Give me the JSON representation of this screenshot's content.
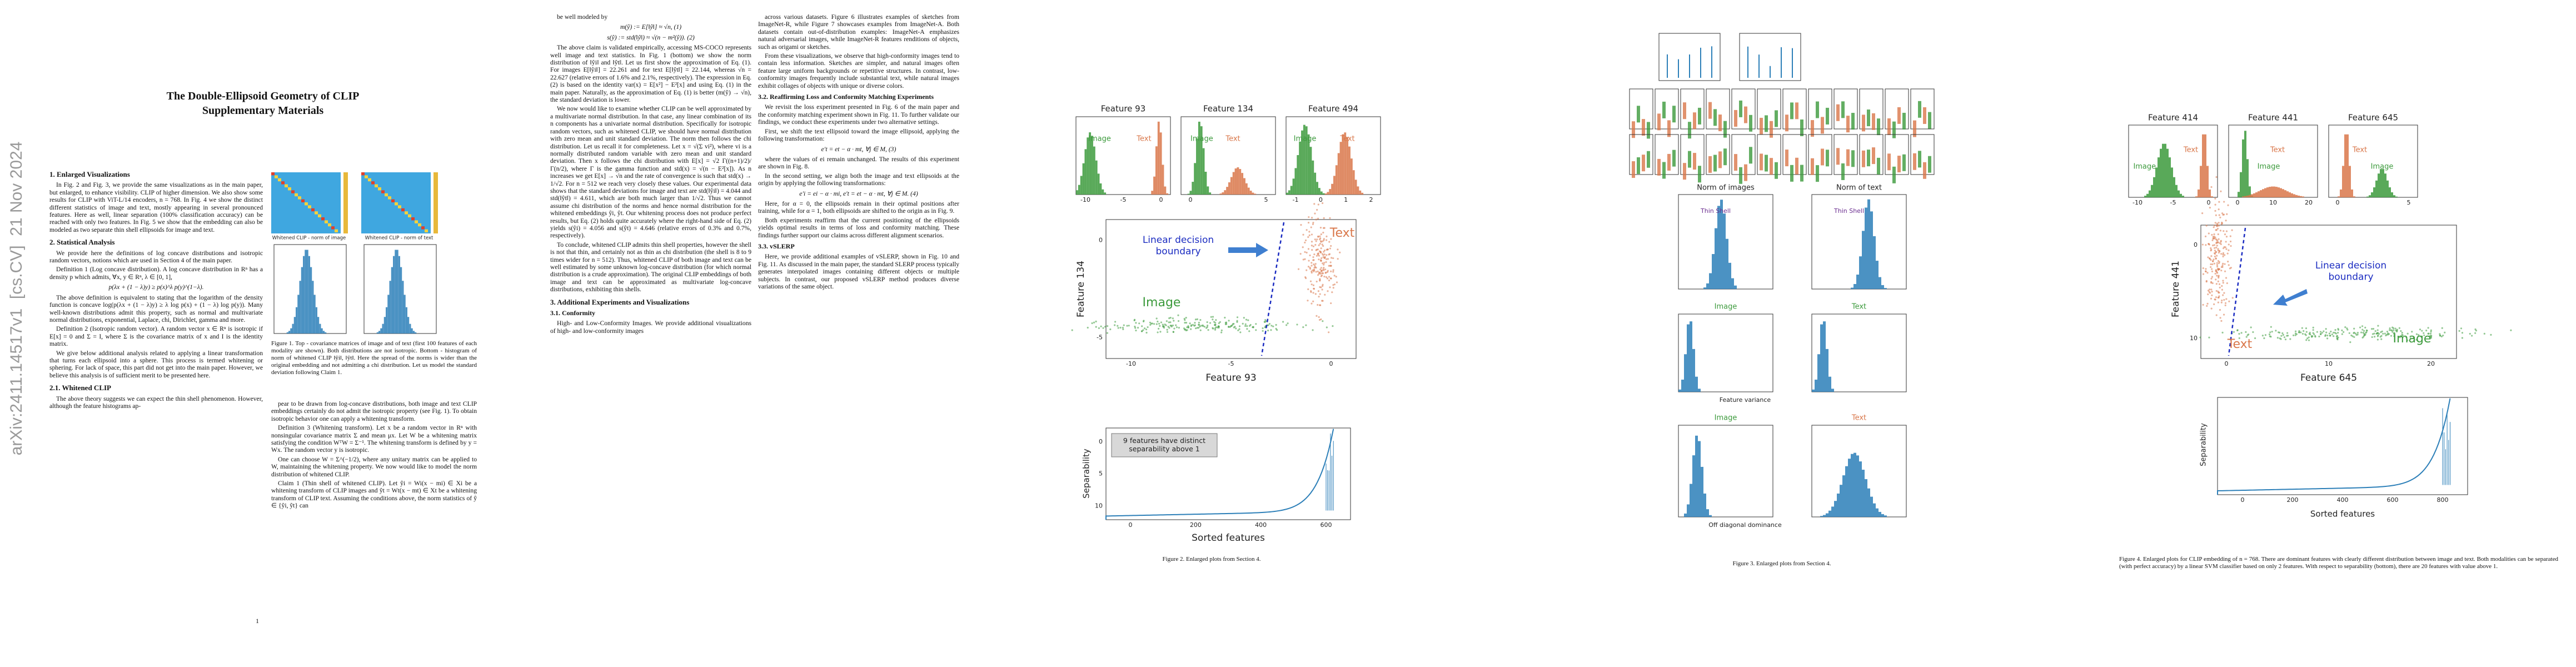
{
  "arxiv_stamp": "arXiv:2411.14517v1  [cs.CV]  21 Nov 2024",
  "page1": {
    "title": "The Double-Ellipsoid Geometry of CLIP\nSupplementary Materials",
    "columns": [
      {
        "blocks": [
          {
            "kind": "heading",
            "text": "1. Enlarged Visualizations"
          },
          {
            "kind": "para",
            "text": "In Fig. 2 and Fig. 3, we provide the same visualizations as in the main paper, but enlarged, to enhance visibility. CLIP of higher dimension. We also show some results for CLIP with ViT-L/14 encoders, n = 768. In Fig. 4 we show the distinct different statistics of image and text, mostly appearing in several pronounced features. Here as well, linear separation (100% classification accuracy) can be reached with only two features. In Fig. 5 we show that the embedding can also be modeled as two separate thin shell ellipsoids for image and text."
          },
          {
            "kind": "heading",
            "text": "2. Statistical Analysis"
          },
          {
            "kind": "para",
            "text": "We provide here the definitions of log concave distributions and isotropic random vectors, notions which are used in Section 4 of the main paper."
          },
          {
            "kind": "para",
            "text": "Definition 1 (Log concave distribution). A log concave distribution in Rⁿ has a density p which admits, ∀x, y ∈ Rⁿ, λ ∈ [0, 1],"
          },
          {
            "kind": "eq",
            "text": "p(λx + (1 − λ)y) ≥ p(x)^λ p(y)^(1−λ)."
          },
          {
            "kind": "para",
            "text": "The above definition is equivalent to stating that the logarithm of the density function is concave log(p(λx + (1 − λ)y) ≥ λ log p(x) + (1 − λ) log p(y)). Many well-known distributions admit this property, such as normal and multivariate normal distributions, exponential, Laplace, chi, Dirichlet, gamma and more."
          },
          {
            "kind": "para",
            "text": "Definition 2 (Isotropic random vector). A random vector x ∈ Rⁿ is isotropic if E[x] = 0 and Σ = I, where Σ is the covariance matrix of x and I is the identity matrix."
          },
          {
            "kind": "para",
            "text": "We give below additional analysis related to applying a linear transformation that turns each ellipsoid into a sphere. This process is termed whitening or sphering. For lack of space, this part did not get into the main paper. However, we believe this analysis is of sufficient merit to be presented here."
          },
          {
            "kind": "heading",
            "text": "2.1. Whitened CLIP"
          },
          {
            "kind": "para",
            "text": "The above theory suggests we can expect the thin shell phenomenon. However, although the feature histograms ap-"
          }
        ]
      },
      {
        "blocks": [
          {
            "kind": "para",
            "text": "pear to be drawn from log-concave distributions, both image and text CLIP embeddings certainly do not admit the isotropic property (see Fig. 1). To obtain isotropic behavior one can apply a whitening transform."
          },
          {
            "kind": "para",
            "text": "Definition 3 (Whitening transform). Let x be a random vector in Rⁿ with nonsingular covariance matrix Σ and mean μx. Let W be a whitening matrix satisfying the condition WᵀW = Σ⁻¹. The whitening transform is defined by y = Wx. The random vector y is isotropic."
          },
          {
            "kind": "para",
            "text": "One can choose W = Σ^(−1/2), where any unitary matrix can be applied to W, maintaining the whitening property. We now would like to model the norm distribution of whitened CLIP."
          },
          {
            "kind": "para",
            "text": "Claim 1 (Thin shell of whitened CLIP). Let ŷi = Wi(x − mi) ∈ Xi be a whitening transform of CLIP images and ŷt = Wt(x − mt) ∈ Xt be a whitening transform of CLIP text. Assuming the conditions above, the norm statistics of ŷ ∈ {ŷi, ŷt} can"
          }
        ]
      }
    ],
    "figure1": {
      "labels": [
        "Whitened CLIP - norm of image",
        "Whitened CLIP - norm of text"
      ],
      "caption": "Figure 1. Top - covariance matrices of image and of text (first 100 features of each modality are shown). Both distributions are not isotropic. Bottom - histogram of norm of whitened CLIP ‖ŷi‖, ‖ŷt‖. Here the spread of the norms is wider than the original embedding and not admitting a chi distribution. Let us model the standard deviation following Claim 1."
    },
    "page_number": "1"
  },
  "page2": {
    "columns": [
      {
        "blocks": [
          {
            "kind": "para",
            "text": "be well modeled by"
          },
          {
            "kind": "eq",
            "text": "m(ŷ) := E[‖ŷ‖] ≈ √n,   (1)"
          },
          {
            "kind": "eq",
            "text": "s(ŷ) := std(‖ŷ‖) ≈ √(n − m²(ŷ)).   (2)"
          },
          {
            "kind": "para",
            "text": "The above claim is validated empirically, accessing MS-COCO represents well image and text statistics. In Fig. 1 (bottom) we show the norm distribution of ‖ŷi‖ and ‖ŷt‖. Let us first show the approximation of Eq. (1). For images E[‖ŷi‖] = 22.261 and for text E[‖ŷt‖] = 22.144, whereas √n = 22.627 (relative errors of 1.6% and 2.1%, respectively). The expression in Eq. (2) is based on the identity var(x) = E[x²] − E²[x] and using Eq. (1) in the main paper. Naturally, as the approximation of Eq. (1) is better (m(ŷ) → √n), the standard deviation is lower."
          },
          {
            "kind": "para",
            "text": "We now would like to examine whether CLIP can be well approximated by a multivariate normal distribution. In that case, any linear combination of its n components has a univariate normal distribution. Specifically for isotropic random vectors, such as whitened CLIP, we should have normal distribution with zero mean and unit standard deviation. The norm then follows the chi distribution. Let us recall it for completeness. Let x = √(Σ vi²), where vi is a normally distributed random variable with zero mean and unit standard deviation. Then x follows the chi distribution with E[x] = √2 Γ((n+1)/2)/Γ(n/2), where Γ is the gamma function and std(x) = √(n − E²[x]). As n increases we get E[x] → √n and the rate of convergence is such that std(x) → 1/√2. For n = 512 we reach very closely these values. Our experimental data shows that the standard deviations for image and text are std(‖ŷi‖) = 4.044 and std(‖ŷt‖) = 4.611, which are both much larger than 1/√2. Thus we cannot assume chi distribution of the norms and hence normal distribution for the whitened embeddings ŷi, ŷt. Our whitening process does not produce perfect results, but Eq. (2) holds quite accurately where the right-hand side of Eq. (2) yields s(ŷi) = 4.056 and s(ŷt) = 4.646 (relative errors of 0.3% and 0.7%, respectively)."
          },
          {
            "kind": "para",
            "text": "To conclude, whitened CLIP admits thin shell properties, however the shell is not that thin, and certainly not as thin as chi distribution (the shell is 8 to 9 times wider for n = 512). Thus, whitened CLIP of both image and text can be well estimated by some unknown log-concave distribution (for which normal distribution is a crude approximation). The original CLIP embeddings of both image and text can be approximated as multivariate log-concave distributions, exhibiting thin shells."
          },
          {
            "kind": "heading",
            "text": "3. Additional Experiments and Visualizations"
          },
          {
            "kind": "subheading",
            "text": "3.1. Conformity"
          },
          {
            "kind": "para",
            "text": "High- and Low-Conformity Images. We provide additional visualizations of high- and low-conformity images"
          }
        ]
      },
      {
        "blocks": [
          {
            "kind": "para",
            "text": "across various datasets. Figure 6 illustrates examples of sketches from ImageNet-R, while Figure 7 showcases examples from ImageNet-A. Both datasets contain out-of-distribution examples: ImageNet-A emphasizes natural adversarial images, while ImageNet-R features renditions of objects, such as origami or sketches."
          },
          {
            "kind": "para",
            "text": "From these visualizations, we observe that high-conformity images tend to contain less information. Sketches are simpler, and natural images often feature large uniform backgrounds or repetitive structures. In contrast, low-conformity images frequently include substantial text, while natural images exhibit collages of objects with unique or diverse colors."
          },
          {
            "kind": "subheading",
            "text": "3.2. Reaffirming Loss and Conformity Matching Experiments"
          },
          {
            "kind": "para",
            "text": "We revisit the loss experiment presented in Fig. 6 of the main paper and the conformity matching experiment shown in Fig. 11. To further validate our findings, we conduct these experiments under two alternative settings."
          },
          {
            "kind": "para",
            "text": "First, we shift the text ellipsoid toward the image ellipsoid, applying the following transformation:"
          },
          {
            "kind": "eq",
            "text": "e′t = et − α · mt,   ∀j ∈ M,   (3)"
          },
          {
            "kind": "para",
            "text": "where the values of ei remain unchanged. The results of this experiment are shown in Fig. 8."
          },
          {
            "kind": "para",
            "text": "In the second setting, we align both the image and text ellipsoids at the origin by applying the following transformations:"
          },
          {
            "kind": "eq",
            "text": "e′i = ei − α · mi,   e′t = et − α · mt,   ∀j ∈ M.   (4)"
          },
          {
            "kind": "para",
            "text": "Here, for α = 0, the ellipsoids remain in their optimal positions after training, while for α = 1, both ellipsoids are shifted to the origin as in Fig. 9."
          },
          {
            "kind": "para",
            "text": "Both experiments reaffirm that the current positioning of the ellipsoids yields optimal results in terms of loss and conformity matching. These findings further support our claims across different alignment scenarios."
          },
          {
            "kind": "subheading",
            "text": "3.3. vSLERP"
          },
          {
            "kind": "para",
            "text": "Here, we provide additional examples of vSLERP, shown in Fig. 10 and Fig. 11. As discussed in the main paper, the standard SLERP process typically generates interpolated images containing different objects or multiple subjects. In contrast, our proposed vSLERP method produces diverse variations of the same object."
          }
        ]
      }
    ]
  },
  "figure2": {
    "panels": [
      {
        "title": "Feature 93",
        "image_label": "Image",
        "text_label": "Text",
        "ticks": [
          "-10",
          "-5",
          "0"
        ]
      },
      {
        "title": "Feature 134",
        "image_label": "Image",
        "text_label": "Text",
        "ticks": [
          "0",
          "5"
        ]
      },
      {
        "title": "Feature 494",
        "image_label": "Image",
        "text_label": "Text",
        "ticks": [
          "-1",
          "0",
          "1",
          "2"
        ]
      }
    ],
    "scatter": {
      "boundary_label": "Linear decision\nboundary",
      "text_label": "Text",
      "image_label": "Image",
      "xlabel": "Feature 93",
      "ylabel": "Feature 134",
      "xticks": [
        "-10",
        "-5",
        "0"
      ],
      "yticks": [
        "0",
        "-5"
      ]
    },
    "separability": {
      "note": "9 features have distinct\nseparability above 1",
      "xlabel": "Sorted features",
      "ylabel": "Separability",
      "xticks": [
        "0",
        "200",
        "400",
        "600"
      ],
      "yticks": [
        "0",
        "5",
        "10"
      ]
    },
    "caption": "Figure 2. Enlarged plots from Section 4."
  },
  "figure3": {
    "norm_titles": [
      "Norm of images",
      "Norm of text"
    ],
    "annotation": "Thin Shell",
    "variance_titles": [
      "Image",
      "Text"
    ],
    "variance_xlabel": "Feature variance",
    "offdiag_titles": [
      "Image",
      "Text"
    ],
    "offdiag_xlabel": "Off diagonal dominance",
    "caption": "Figure 3. Enlarged plots from Section 4."
  },
  "figure4": {
    "panels": [
      {
        "title": "Feature 414",
        "image_label": "Image",
        "text_label": "Text",
        "ticks": [
          "-10",
          "-5",
          "0"
        ]
      },
      {
        "title": "Feature 441",
        "image_label": "Image",
        "text_label": "Text",
        "ticks": [
          "0",
          "10",
          "20"
        ]
      },
      {
        "title": "Feature 645",
        "image_label": "Image",
        "text_label": "Text",
        "ticks": [
          "0",
          "5"
        ]
      }
    ],
    "scatter": {
      "boundary_label": "Linear decision\nboundary",
      "text_label": "Text",
      "image_label": "Image",
      "xlabel": "Feature 645",
      "ylabel": "Feature 441",
      "xticks": [
        "0",
        "10",
        "20"
      ],
      "yticks": [
        "0",
        "10"
      ]
    },
    "separability": {
      "xlabel": "Sorted features",
      "ylabel": "Separability",
      "xticks": [
        "0",
        "200",
        "400",
        "600",
        "800"
      ]
    },
    "caption": "Figure 4. Enlarged plots for CLIP embedding of n = 768. There are dominant features with clearly different distribution between image and text. Both modalities can be separated (with perfect accuracy) by a linear SVM classifier based on only 2 features. With respect to separability (bottom), there are 20 features with value above 1."
  }
}
